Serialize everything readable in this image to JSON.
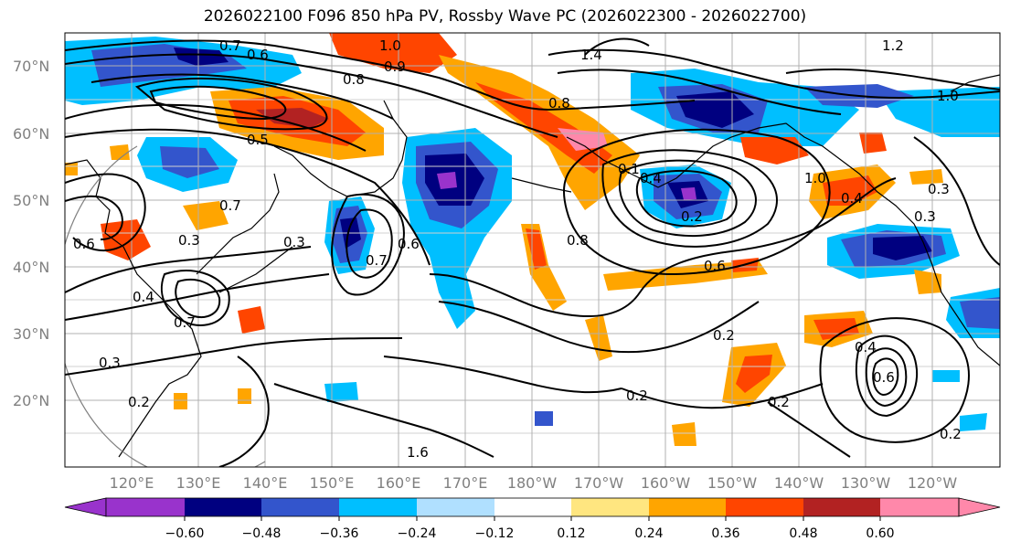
{
  "title": "2026022100 F096 850 hPa PV, Rossby Wave PC (2026022300 - 2026022700)",
  "lat_labels": [
    "70°N",
    "60°N",
    "50°N",
    "40°N",
    "30°N",
    "20°N"
  ],
  "lon_labels": [
    "120°E",
    "130°E",
    "140°E",
    "150°E",
    "160°E",
    "170°E",
    "180°W",
    "170°W",
    "160°W",
    "150°W",
    "140°W",
    "130°W",
    "120°W"
  ],
  "colorbar": {
    "tick_labels": [
      "−0.60",
      "−0.48",
      "−0.36",
      "−0.24",
      "−0.12",
      "0.12",
      "0.24",
      "0.36",
      "0.48",
      "0.60"
    ],
    "colors": [
      "#9933cc",
      "#000080",
      "#3355cc",
      "#00bfff",
      "#b0e0ff",
      "#ffffff",
      "#ffe680",
      "#ffa500",
      "#ff4500",
      "#b22222",
      "#ff88aa"
    ]
  },
  "contour_labels": [
    "1.0",
    "0.9",
    "0.8",
    "0.7",
    "0.6",
    "1.4",
    "1.2",
    "1.0",
    "0.5",
    "0.7",
    "0.3",
    "0.4",
    "0.3",
    "0.2",
    "0.6",
    "0.8",
    "0.4",
    "0.2",
    "0.7",
    "0.6",
    "0.8",
    "0.6",
    "1.0",
    "0.4",
    "0.3",
    "0.3",
    "0.2",
    "0.2",
    "0.4",
    "0.6",
    "0.2",
    "0.2",
    "0.3",
    "0.7",
    "0.1",
    "1.6"
  ]
}
